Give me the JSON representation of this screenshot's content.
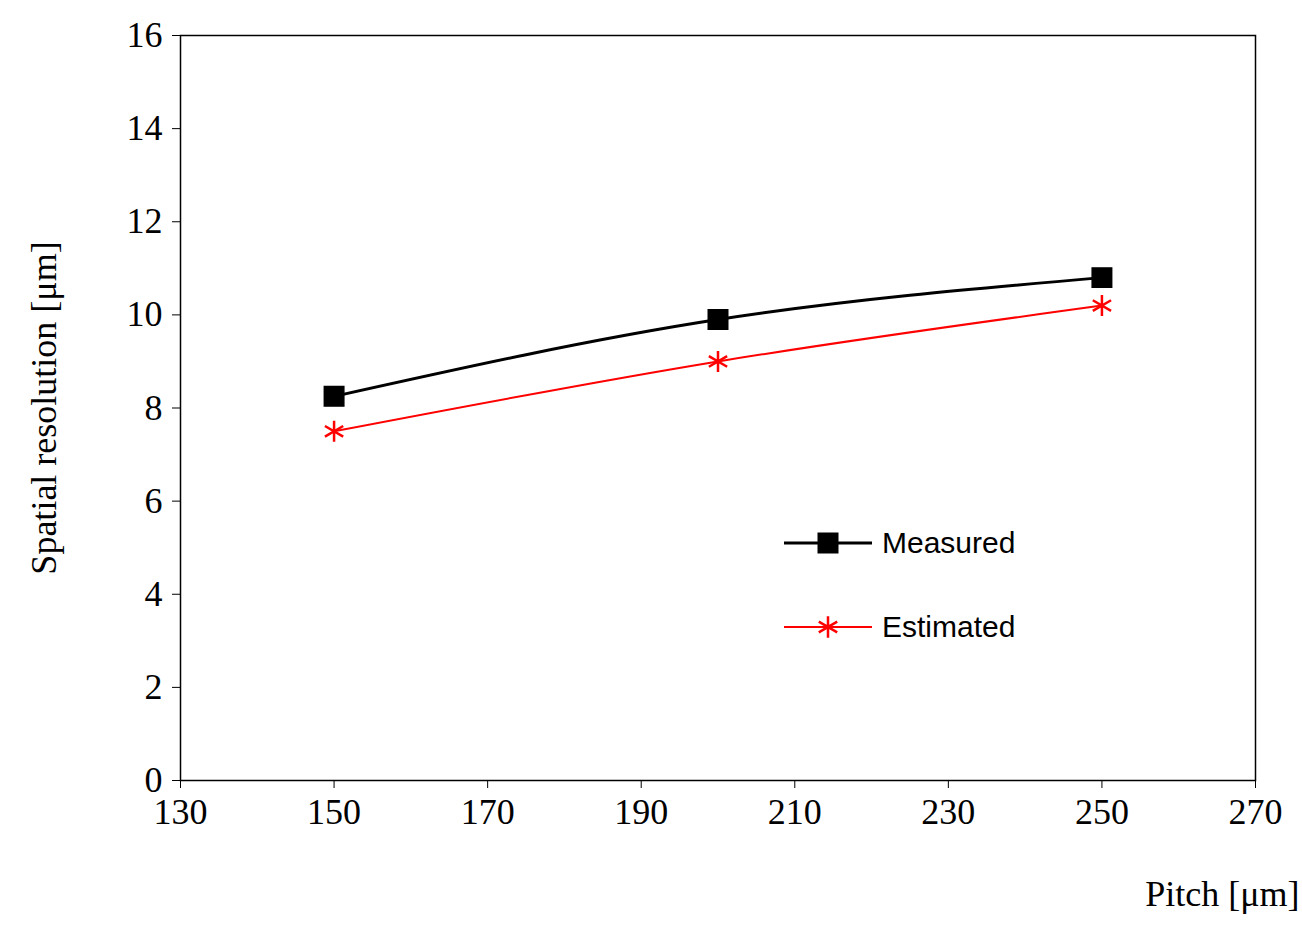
{
  "chart_data": {
    "type": "line",
    "x_label": "Pitch [μm]",
    "y_label": "Spatial resolution [μm]",
    "x": [
      150,
      200,
      250
    ],
    "series": [
      {
        "name": "Measured",
        "color": "#000000",
        "marker": "square",
        "values": [
          8.25,
          9.9,
          10.8
        ]
      },
      {
        "name": "Estimated",
        "color": "#ff0000",
        "marker": "asterisk",
        "values": [
          7.5,
          9.0,
          10.2
        ]
      }
    ],
    "xlim": [
      130,
      270
    ],
    "xticks": [
      130,
      150,
      170,
      190,
      210,
      230,
      250,
      270
    ],
    "ylim": [
      0,
      16
    ],
    "yticks": [
      0,
      2,
      4,
      6,
      8,
      10,
      12,
      14,
      16
    ],
    "grid": false,
    "legend": "lower right"
  }
}
